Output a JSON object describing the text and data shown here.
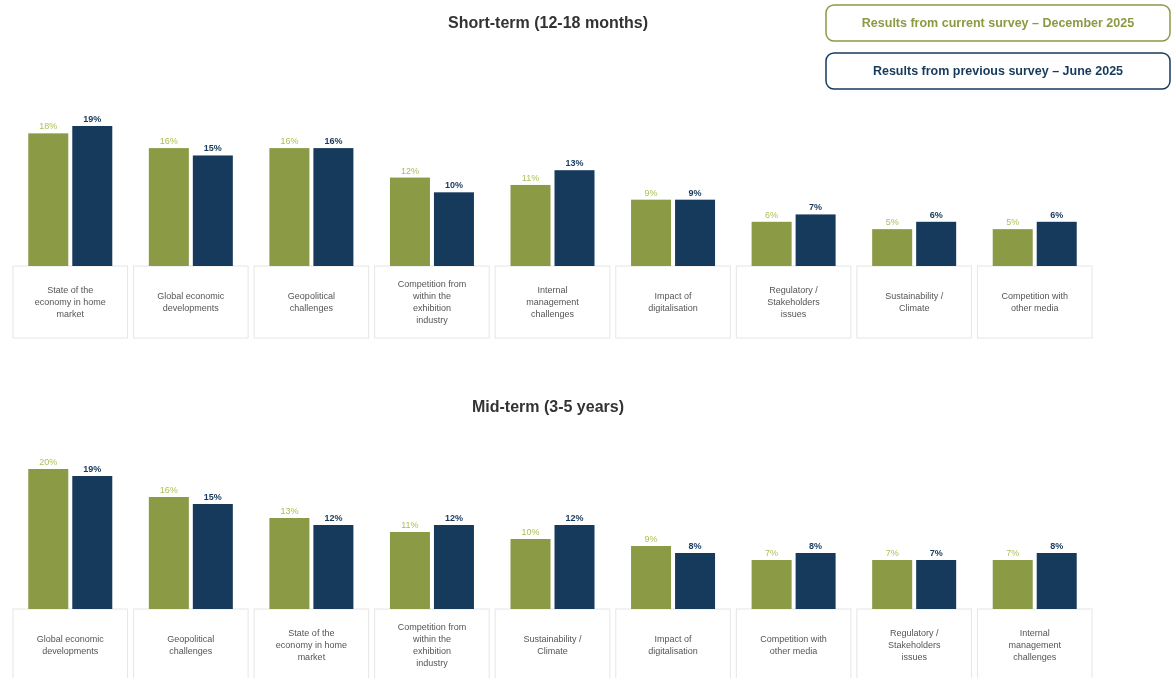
{
  "chart_data": [
    {
      "type": "bar",
      "title": "Short-term (12-18 months)",
      "categories": [
        "State of the economy in home market",
        "Global economic developments",
        "Geopolitical challenges",
        "Competition from within the exhibition industry",
        "Internal management challenges",
        "Impact of digitalisation",
        "Regulatory / Stakeholders issues",
        "Sustainability / Climate",
        "Competition with other media"
      ],
      "series": [
        {
          "name": "Results from current survey – December 2025",
          "color": "#8a9a45",
          "values": [
            18,
            16,
            16,
            12,
            11,
            9,
            6,
            5,
            5
          ],
          "value_labels": [
            "18%",
            "16%",
            "16%",
            "12%",
            "11%",
            "9%",
            "6%",
            "5%",
            "5%"
          ]
        },
        {
          "name": "Results from previous survey – June 2025",
          "color": "#163a5c",
          "values": [
            19,
            15,
            16,
            10,
            13,
            9,
            7,
            6,
            6
          ],
          "value_labels": [
            "19%",
            "15%",
            "16%",
            "10%",
            "13%",
            "9%",
            "7%",
            "6%",
            "6%"
          ]
        }
      ],
      "legend": "top right"
    },
    {
      "type": "bar",
      "title": "Mid-term (3-5 years)",
      "categories": [
        "Global economic developments",
        "Geopolitical challenges",
        "State of the economy in home market",
        "Competition from within the exhibition industry",
        "Sustainability / Climate",
        "Impact of digitalisation",
        "Competition with other media",
        "Regulatory / Stakeholders issues",
        "Internal management challenges"
      ],
      "series": [
        {
          "color": "#8a9a45",
          "values": [
            20,
            16,
            13,
            11,
            10,
            9,
            7,
            7,
            7
          ],
          "value_labels": [
            "20%",
            "16%",
            "13%",
            "11%",
            "10%",
            "9%",
            "7%",
            "7%",
            "7%"
          ]
        },
        {
          "color": "#163a5c",
          "values": [
            19,
            15,
            12,
            12,
            12,
            8,
            8,
            7,
            8
          ],
          "value_labels": [
            "19%",
            "15%",
            "12%",
            "12%",
            "12%",
            "8%",
            "8%",
            "7%",
            "8%"
          ]
        }
      ]
    }
  ]
}
